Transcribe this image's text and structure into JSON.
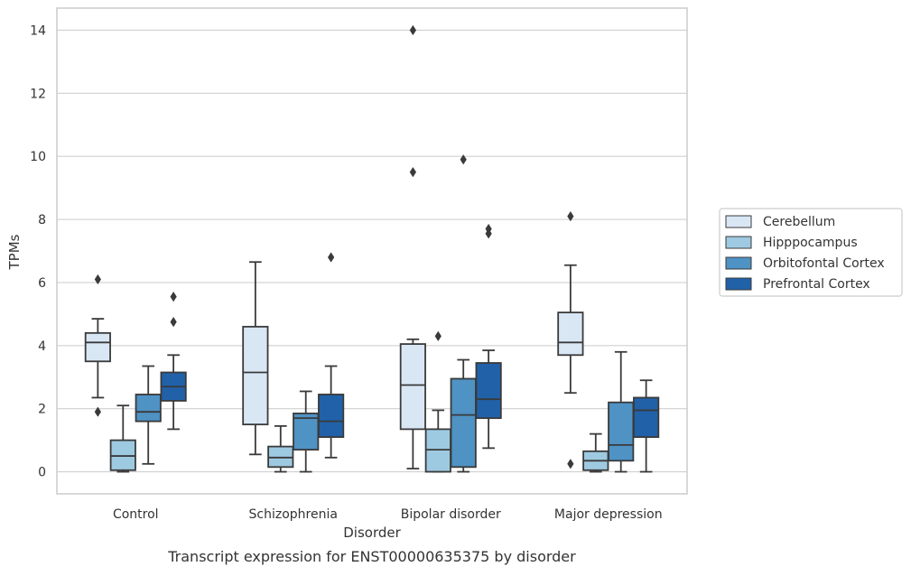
{
  "chart_data": {
    "type": "box",
    "title": "",
    "caption": "Transcript expression for ENST00000635375 by disorder",
    "xlabel": "Disorder",
    "ylabel": "TPMs",
    "ylim": [
      -0.7,
      14.7
    ],
    "yticks": [
      0,
      2,
      4,
      6,
      8,
      10,
      12,
      14
    ],
    "grid": true,
    "legend_position": "right",
    "categories": [
      "Control",
      "Schizophrenia",
      "Bipolar disorder",
      "Major depression"
    ],
    "series": [
      {
        "name": "Cerebellum",
        "color": "#d9e7f5",
        "boxes": [
          {
            "whislo": 2.35,
            "q1": 3.5,
            "med": 4.1,
            "q3": 4.4,
            "whishi": 4.85,
            "fliers": [
              6.1,
              1.9
            ]
          },
          {
            "whislo": 0.55,
            "q1": 1.5,
            "med": 3.15,
            "q3": 4.6,
            "whishi": 6.65,
            "fliers": []
          },
          {
            "whislo": 0.1,
            "q1": 1.35,
            "med": 2.75,
            "q3": 4.05,
            "whishi": 4.2,
            "fliers": [
              14.0,
              9.5
            ]
          },
          {
            "whislo": 2.5,
            "q1": 3.7,
            "med": 4.1,
            "q3": 5.05,
            "whishi": 6.55,
            "fliers": [
              8.1,
              0.25
            ]
          }
        ]
      },
      {
        "name": "Hipppocampus",
        "color": "#9ecae1",
        "boxes": [
          {
            "whislo": 0.0,
            "q1": 0.05,
            "med": 0.5,
            "q3": 1.0,
            "whishi": 2.1,
            "fliers": []
          },
          {
            "whislo": 0.0,
            "q1": 0.15,
            "med": 0.45,
            "q3": 0.8,
            "whishi": 1.45,
            "fliers": []
          },
          {
            "whislo": 0.0,
            "q1": 0.0,
            "med": 0.7,
            "q3": 1.35,
            "whishi": 1.95,
            "fliers": [
              4.3
            ]
          },
          {
            "whislo": 0.0,
            "q1": 0.05,
            "med": 0.35,
            "q3": 0.65,
            "whishi": 1.2,
            "fliers": []
          }
        ]
      },
      {
        "name": "Orbitofontal Cortex",
        "color": "#4f92c4",
        "boxes": [
          {
            "whislo": 0.25,
            "q1": 1.6,
            "med": 1.9,
            "q3": 2.45,
            "whishi": 3.35,
            "fliers": []
          },
          {
            "whislo": 0.0,
            "q1": 0.7,
            "med": 1.7,
            "q3": 1.85,
            "whishi": 2.55,
            "fliers": []
          },
          {
            "whislo": 0.0,
            "q1": 0.15,
            "med": 1.8,
            "q3": 2.95,
            "whishi": 3.55,
            "fliers": [
              9.9
            ]
          },
          {
            "whislo": 0.0,
            "q1": 0.35,
            "med": 0.85,
            "q3": 2.2,
            "whishi": 3.8,
            "fliers": []
          }
        ]
      },
      {
        "name": "Prefrontal Cortex",
        "color": "#2161a8",
        "boxes": [
          {
            "whislo": 1.35,
            "q1": 2.25,
            "med": 2.7,
            "q3": 3.15,
            "whishi": 3.7,
            "fliers": [
              5.55,
              4.75
            ]
          },
          {
            "whislo": 0.45,
            "q1": 1.1,
            "med": 1.6,
            "q3": 2.45,
            "whishi": 3.35,
            "fliers": [
              6.8
            ]
          },
          {
            "whislo": 0.75,
            "q1": 1.7,
            "med": 2.3,
            "q3": 3.45,
            "whishi": 3.85,
            "fliers": [
              7.7,
              7.55
            ]
          },
          {
            "whislo": 0.0,
            "q1": 1.1,
            "med": 1.95,
            "q3": 2.35,
            "whishi": 2.9,
            "fliers": []
          }
        ]
      }
    ]
  }
}
